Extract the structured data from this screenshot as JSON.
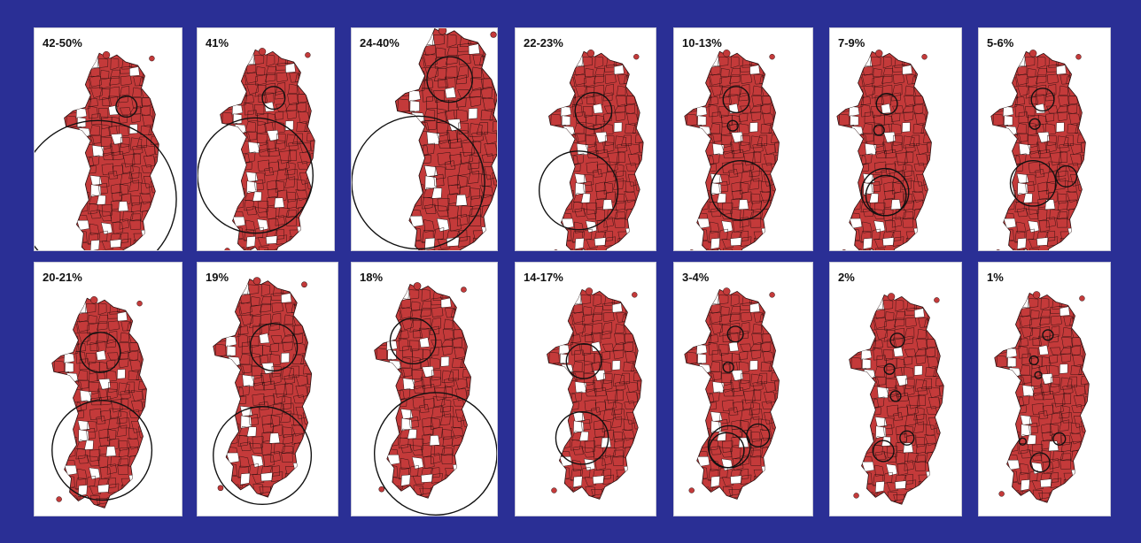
{
  "colors": {
    "background": "#2a2f95",
    "panel": "#ffffff",
    "land": "#c43a3a",
    "borders": "#2a1010",
    "circles": "#111111"
  },
  "panels": [
    {
      "label": "42-50%",
      "circles": 2
    },
    {
      "label": "41%",
      "circles": 2
    },
    {
      "label": "24-40%",
      "circles": 2
    },
    {
      "label": "22-23%",
      "circles": 2
    },
    {
      "label": "10-13%",
      "circles": 3
    },
    {
      "label": "7-9%",
      "circles": 4
    },
    {
      "label": "5-6%",
      "circles": 4
    },
    {
      "label": "20-21%",
      "circles": 2
    },
    {
      "label": "19%",
      "circles": 2
    },
    {
      "label": "18%",
      "circles": 2
    },
    {
      "label": "14-17%",
      "circles": 2
    },
    {
      "label": "3-4%",
      "circles": 5
    },
    {
      "label": "2%",
      "circles": 5
    },
    {
      "label": "1%",
      "circles": 6
    }
  ]
}
